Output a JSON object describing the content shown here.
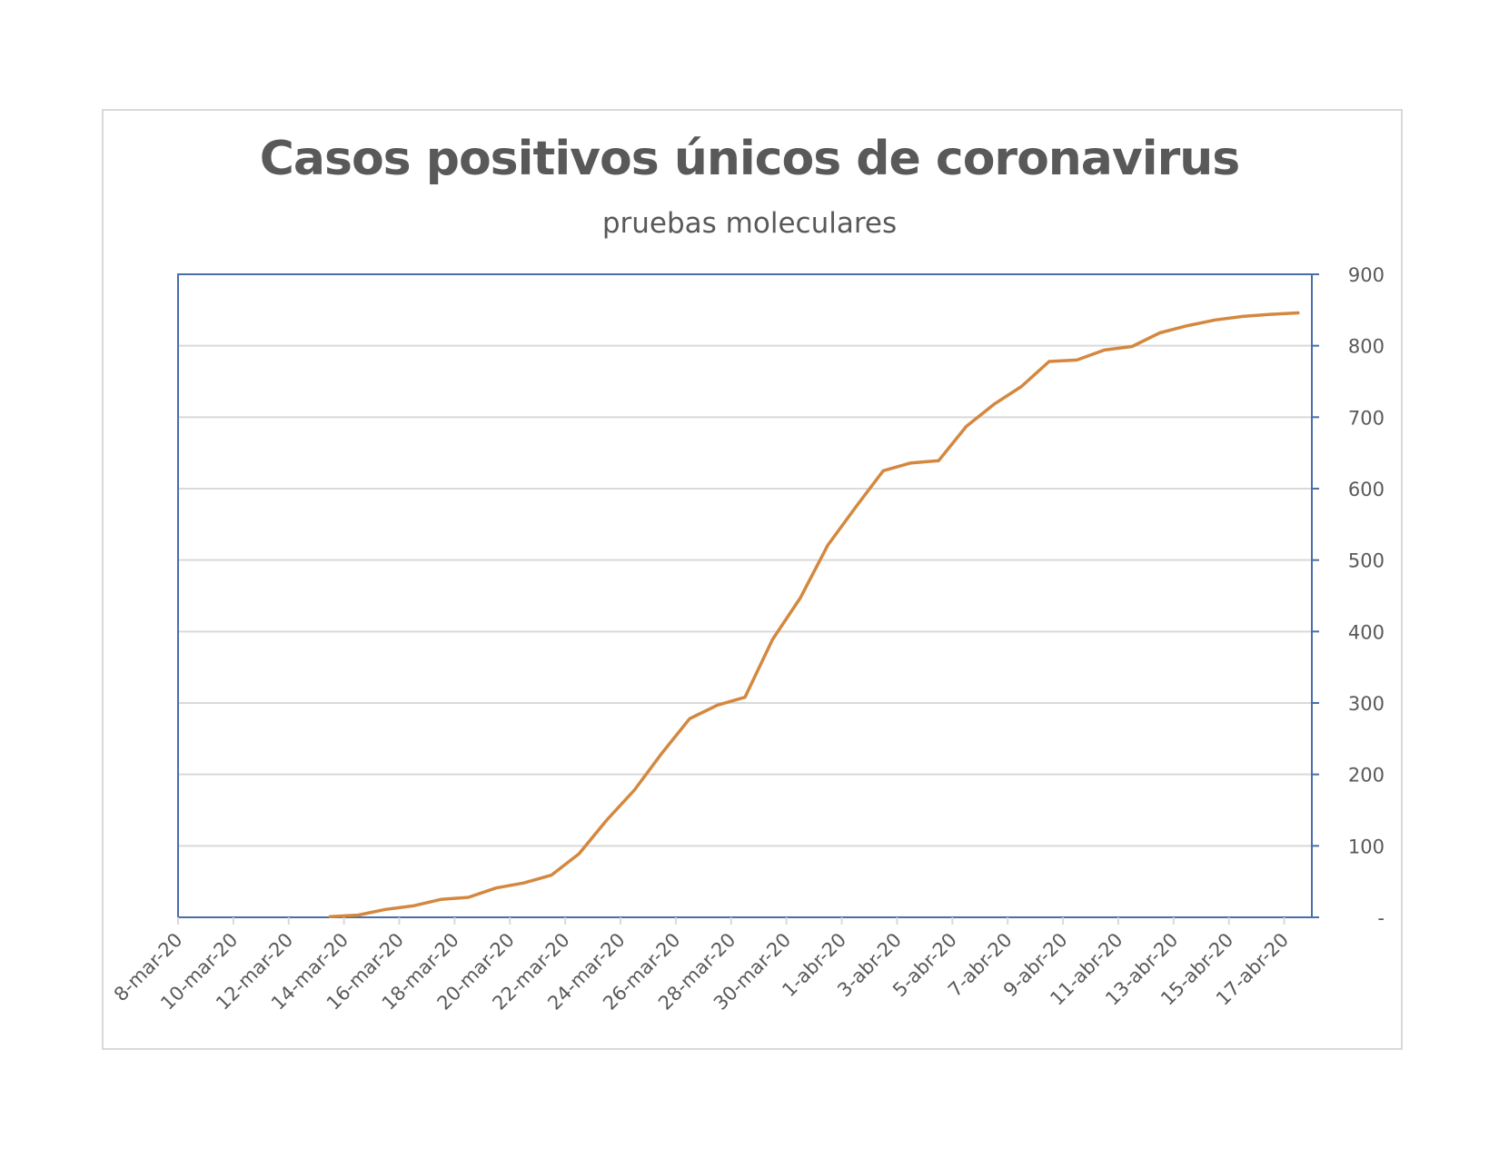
{
  "chart_data": {
    "type": "line",
    "title": "Casos positivos únicos de coronavirus",
    "subtitle": "pruebas moleculares",
    "xlabel": "",
    "ylabel": "",
    "ylim": [
      0,
      900
    ],
    "yticks": [
      0,
      100,
      200,
      300,
      400,
      500,
      600,
      700,
      800,
      900
    ],
    "ytick_labels": [
      "-",
      "100",
      "200",
      "300",
      "400",
      "500",
      "600",
      "700",
      "800",
      "900"
    ],
    "y_axis_position": "right",
    "grid": true,
    "line_color": "#d4883f",
    "x_tick_labels": [
      "8-mar-20",
      "10-mar-20",
      "12-mar-20",
      "14-mar-20",
      "16-mar-20",
      "18-mar-20",
      "20-mar-20",
      "22-mar-20",
      "24-mar-20",
      "26-mar-20",
      "28-mar-20",
      "30-mar-20",
      "1-abr-20",
      "3-abr-20",
      "5-abr-20",
      "7-abr-20",
      "9-abr-20",
      "11-abr-20",
      "13-abr-20",
      "15-abr-20",
      "17-abr-20"
    ],
    "x_start": "8-mar-20",
    "x_end": "17-abr-20",
    "series": [
      {
        "x": [
          "13-mar-20",
          "14-mar-20",
          "15-mar-20",
          "16-mar-20",
          "17-mar-20",
          "18-mar-20",
          "19-mar-20",
          "20-mar-20",
          "21-mar-20",
          "22-mar-20",
          "23-mar-20",
          "24-mar-20",
          "25-mar-20",
          "26-mar-20",
          "27-mar-20",
          "28-mar-20",
          "29-mar-20",
          "30-mar-20",
          "31-mar-20",
          "1-abr-20",
          "2-abr-20",
          "3-abr-20",
          "4-abr-20",
          "5-abr-20",
          "6-abr-20",
          "7-abr-20",
          "8-abr-20",
          "9-abr-20",
          "10-abr-20",
          "11-abr-20",
          "12-abr-20",
          "13-abr-20",
          "14-abr-20",
          "15-abr-20",
          "16-abr-20",
          "17-abr-20"
        ],
        "values": [
          1,
          3,
          11,
          16,
          25,
          28,
          41,
          48,
          59,
          89,
          136,
          178,
          230,
          278,
          297,
          308,
          389,
          447,
          521,
          574,
          625,
          636,
          639,
          687,
          718,
          743,
          778,
          780,
          794,
          799,
          818,
          828,
          836,
          841,
          844,
          846
        ]
      }
    ]
  }
}
